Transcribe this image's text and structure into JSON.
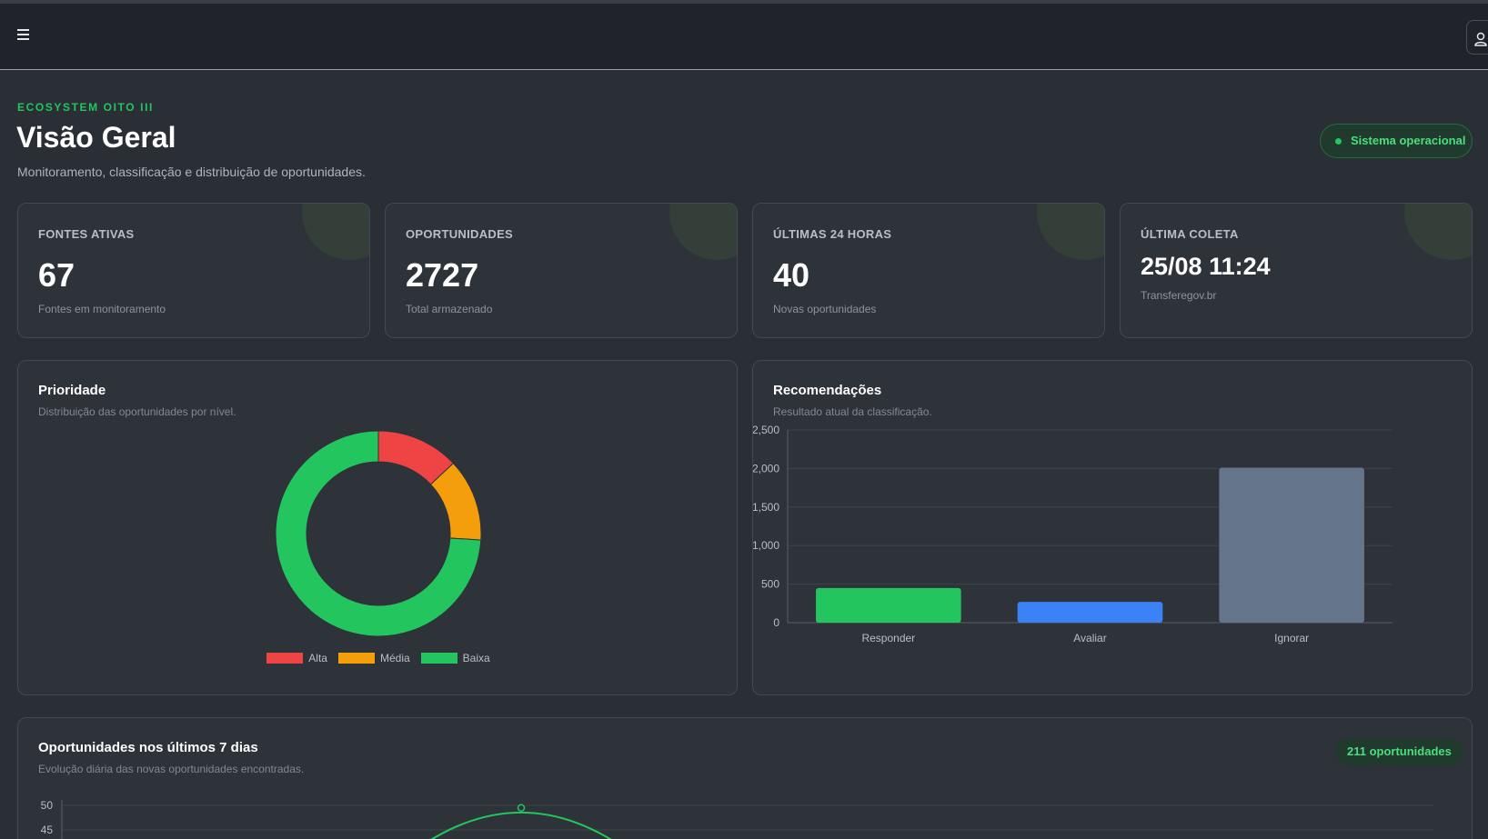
{
  "header": {
    "menu_icon": "hamburger-menu-icon",
    "user_icon": "user-icon"
  },
  "page": {
    "eyebrow": "ECOSYSTEM OITO III",
    "title": "Visão Geral",
    "subtitle": "Monitoramento, classificação e distribuição de oportunidades.",
    "status": "Sistema operacional",
    "status_color": "#22c55e"
  },
  "stats": [
    {
      "label": "FONTES ATIVAS",
      "value": "67",
      "sub": "Fontes em monitoramento"
    },
    {
      "label": "OPORTUNIDADES",
      "value": "2727",
      "sub": "Total armazenado"
    },
    {
      "label": "ÚLTIMAS 24 HORAS",
      "value": "40",
      "sub": "Novas oportunidades"
    },
    {
      "label": "ÚLTIMA COLETA",
      "value": "25/08 11:24",
      "sub": "Transferegov.br"
    }
  ],
  "priority": {
    "title": "Prioridade",
    "subtitle": "Distribuição das oportunidades por nível."
  },
  "recommend": {
    "title": "Recomendações",
    "subtitle": "Resultado atual da classificação."
  },
  "weekly": {
    "title": "Oportunidades nos últimos 7 dias",
    "subtitle": "Evolução diária das novas oportunidades encontradas.",
    "count": "211 oportunidades"
  },
  "chart_data": [
    {
      "type": "pie",
      "variant": "doughnut",
      "categories": [
        "Alta",
        "Média",
        "Baixa"
      ],
      "values": [
        13,
        13,
        74
      ],
      "colors": [
        "#ef4444",
        "#f59e0b",
        "#22c55e"
      ],
      "legend": "bottom"
    },
    {
      "type": "bar",
      "categories": [
        "Responder",
        "Avaliar",
        "Ignorar"
      ],
      "values": [
        450,
        270,
        2010
      ],
      "colors": [
        "#22c55e",
        "#3b82f6",
        "#64748b"
      ],
      "ylim": [
        0,
        2500
      ],
      "yticks": [
        "0",
        "500",
        "1,000",
        "1,500",
        "2,000",
        "2,500"
      ],
      "grid": true
    },
    {
      "type": "line",
      "ylim": [
        45,
        50
      ],
      "yticks": [
        "50",
        "45"
      ],
      "values_visible": [
        49.3
      ],
      "color": "#22c55e",
      "grid": true
    }
  ]
}
